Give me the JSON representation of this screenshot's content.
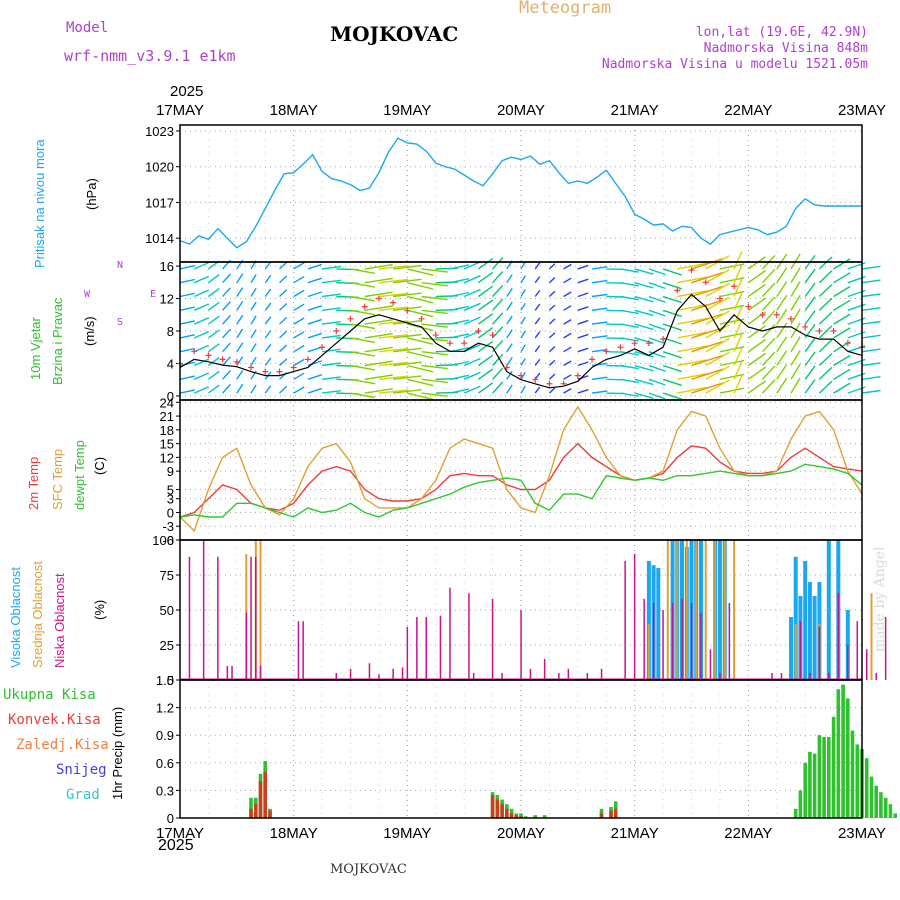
{
  "header": {
    "model_label": "Model",
    "model_name": "wrf-nmm_v3.9.1 e1km",
    "station": "MOJKOVAC",
    "product": "Meteogram",
    "lonlat": "lon,lat (19.6E, 42.9N)",
    "altitude": "Nadmorska Visina 848m",
    "model_altitude": "Nadmorska Visina u modelu 1521.05m",
    "credit": "made by Angel",
    "footer_station": "MOJKOVAC"
  },
  "time_axis": {
    "year": "2025",
    "labels": [
      "17MAY",
      "18MAY",
      "19MAY",
      "20MAY",
      "21MAY",
      "22MAY",
      "23MAY"
    ]
  },
  "panels": {
    "pressure": {
      "labels": [
        "Pritisak na nivou mora"
      ],
      "unit": "(hPa)",
      "color_label": "#00a0ff"
    },
    "wind": {
      "labels": [
        "10m Vjetar",
        "Brzina i Pravac"
      ],
      "unit": "(m/s)",
      "compass": [
        "N",
        "E",
        "S",
        "W"
      ]
    },
    "temp": {
      "labels": [
        "2m Temp",
        "SFC Temp",
        "dewpt Temp"
      ],
      "unit": "(C)"
    },
    "cloud": {
      "labels": [
        "Visoka Oblacnost",
        "Srednja Oblacnost",
        "Niska Oblacnost"
      ],
      "unit": "(%)"
    },
    "precip": {
      "labels": [
        "Ukupna Kisa",
        "Konvek.Kisa",
        "Zaledj.Kisa",
        "Snijeg",
        "Grad"
      ],
      "unit": "1hr Precip (mm)"
    }
  },
  "colors": {
    "pressure": "#1ca8f0",
    "temp2m": "#f03c3c",
    "sfc": "#e0a030",
    "dewpt": "#30c830",
    "wind_speed": "#000000",
    "gust": "#f03c3c",
    "cloud_high": "#1ca8f0",
    "cloud_mid": "#e0a030",
    "cloud_low": "#c8148c",
    "precip_total": "#30c030",
    "precip_conv": "#c84020",
    "label_purple": "#b040d0",
    "label_orange": "#e0b070"
  },
  "chart_data": [
    {
      "type": "line",
      "title": "",
      "ylabel": "(hPa)",
      "ylim": [
        1012,
        1023.5
      ],
      "yticks": [
        1014,
        1017,
        1020,
        1023
      ],
      "x": [
        0,
        2,
        4,
        6,
        8,
        10,
        12,
        14,
        16,
        18,
        20,
        22,
        24,
        26,
        28,
        30,
        32,
        34,
        36,
        38,
        40,
        42,
        44,
        46,
        48,
        50,
        52,
        54,
        56,
        58,
        60,
        62,
        64,
        66,
        68,
        70,
        72,
        74,
        76,
        78,
        80,
        82,
        84,
        86,
        88,
        90,
        92,
        94,
        96,
        98,
        100,
        102,
        104,
        106,
        108,
        110,
        112,
        114,
        116,
        118,
        120,
        122,
        124,
        126,
        128,
        130,
        132,
        134,
        136,
        138,
        140,
        142,
        144
      ],
      "series": [
        {
          "name": "Pritisak",
          "values": [
            1013.8,
            1013.5,
            1014.2,
            1013.9,
            1014.8,
            1014.0,
            1013.2,
            1013.7,
            1015.0,
            1016.5,
            1018.0,
            1019.4,
            1019.5,
            1020.2,
            1021.0,
            1019.6,
            1019.0,
            1018.8,
            1018.5,
            1018.0,
            1018.2,
            1019.5,
            1021.2,
            1022.4,
            1022.0,
            1021.9,
            1021.3,
            1020.3,
            1020.0,
            1019.8,
            1019.3,
            1018.8,
            1018.4,
            1019.4,
            1020.5,
            1020.8,
            1020.6,
            1020.9,
            1020.2,
            1020.5,
            1019.5,
            1018.6,
            1018.8,
            1018.6,
            1019.1,
            1019.7,
            1018.6,
            1017.5,
            1016.0,
            1015.6,
            1015.1,
            1015.2,
            1014.6,
            1015.0,
            1014.9,
            1014.0,
            1013.5,
            1014.3,
            1014.5,
            1014.7,
            1014.9,
            1014.7,
            1014.3,
            1014.5,
            1015.0,
            1016.5,
            1017.3,
            1016.8,
            1016.7,
            1016.7,
            1016.7,
            1016.7,
            1016.7
          ]
        }
      ]
    },
    {
      "type": "line",
      "title": "",
      "ylabel": "(m/s)",
      "ylim": [
        -0.5,
        16.5
      ],
      "yticks": [
        0,
        4,
        8,
        12,
        16
      ],
      "x": [
        0,
        3,
        6,
        9,
        12,
        15,
        18,
        21,
        24,
        27,
        30,
        33,
        36,
        39,
        42,
        45,
        48,
        51,
        54,
        57,
        60,
        63,
        66,
        69,
        72,
        75,
        78,
        81,
        84,
        87,
        90,
        93,
        96,
        99,
        102,
        105,
        108,
        111,
        114,
        117,
        120,
        123,
        126,
        129,
        132,
        135,
        138,
        141,
        144
      ],
      "series": [
        {
          "name": "Brzina",
          "values": [
            3.5,
            4.5,
            4.2,
            3.8,
            3.6,
            3.0,
            2.5,
            2.5,
            3.0,
            3.5,
            5.0,
            6.5,
            8.0,
            9.5,
            10.0,
            9.5,
            9.0,
            8.5,
            6.5,
            5.5,
            5.5,
            6.5,
            6.0,
            3.0,
            2.0,
            1.5,
            1.0,
            1.2,
            1.8,
            3.5,
            4.5,
            5.0,
            5.8,
            5.0,
            6.0,
            10.5,
            12.5,
            11.0,
            8.0,
            10.0,
            8.5,
            8.0,
            8.5,
            8.5,
            7.5,
            7.0,
            7.0,
            5.5,
            5.0
          ]
        },
        {
          "name": "Udari",
          "values": [
            4.0,
            5.5,
            5.0,
            4.5,
            4.2,
            3.5,
            3.0,
            3.0,
            3.5,
            4.5,
            6.0,
            8.0,
            9.5,
            11.0,
            12.0,
            11.5,
            10.5,
            9.5,
            7.5,
            6.5,
            6.5,
            8.0,
            7.5,
            3.5,
            2.5,
            2.0,
            1.5,
            1.5,
            2.5,
            4.5,
            5.5,
            6.0,
            6.5,
            6.5,
            7.0,
            13.0,
            15.5,
            14.0,
            12.0,
            13.5,
            11.0,
            10.0,
            10.0,
            9.5,
            8.5,
            8.0,
            8.0,
            6.5,
            6.0
          ]
        }
      ]
    },
    {
      "type": "line",
      "title": "",
      "ylabel": "(C)",
      "ylim": [
        -6,
        24.5
      ],
      "yticks": [
        -6,
        -3,
        0,
        3,
        5,
        9,
        12,
        15,
        18,
        21,
        24
      ],
      "x": [
        0,
        3,
        6,
        9,
        12,
        15,
        18,
        21,
        24,
        27,
        30,
        33,
        36,
        39,
        42,
        45,
        48,
        51,
        54,
        57,
        60,
        63,
        66,
        69,
        72,
        75,
        78,
        81,
        84,
        87,
        90,
        93,
        96,
        99,
        102,
        105,
        108,
        111,
        114,
        117,
        120,
        123,
        126,
        129,
        132,
        135,
        138,
        141,
        144
      ],
      "series": [
        {
          "name": "2m Temp",
          "values": [
            -1,
            0,
            3,
            6,
            5,
            2,
            1,
            0.5,
            2,
            6,
            9,
            10,
            9,
            5,
            3,
            2.5,
            2.5,
            3,
            5,
            8,
            8.5,
            8,
            8,
            6,
            5,
            5,
            7,
            12,
            15,
            12,
            10,
            8,
            7,
            7.5,
            8.5,
            12,
            14.5,
            14,
            11,
            9,
            8.5,
            8.5,
            9,
            12,
            14,
            12,
            10,
            9.5,
            9
          ]
        },
        {
          "name": "SFC Temp",
          "values": [
            -1,
            -4,
            5,
            12,
            14,
            6,
            1,
            -0.5,
            3,
            10,
            14,
            15,
            11,
            3,
            1,
            1,
            1,
            3,
            7,
            14,
            16,
            15,
            14,
            5,
            1,
            0,
            8,
            18,
            23,
            18,
            12,
            8,
            7,
            7.5,
            9,
            18,
            22,
            21,
            14,
            9,
            8,
            8,
            9,
            16,
            21,
            22,
            18,
            9,
            4
          ]
        },
        {
          "name": "dewpt Temp",
          "values": [
            -1,
            -0.5,
            -1,
            -1,
            2,
            2,
            1,
            0,
            -1,
            1,
            0,
            0.5,
            2,
            0,
            -1,
            0.5,
            1,
            2,
            3,
            4,
            5.5,
            6.5,
            7,
            7.5,
            7,
            2,
            0.5,
            4,
            4,
            3,
            8,
            7.5,
            7,
            7.5,
            7,
            8,
            8,
            8.5,
            9,
            8.5,
            8,
            8,
            8.5,
            9,
            10.5,
            10,
            9.5,
            8.5,
            6
          ]
        }
      ]
    },
    {
      "type": "bar",
      "title": "",
      "ylabel": "(%)",
      "ylim": [
        0,
        100
      ],
      "yticks": [
        0,
        25,
        50,
        75,
        100
      ],
      "series": [
        {
          "name": "Visoka Oblacnost",
          "x": [
            99,
            100,
            101,
            104,
            105,
            106,
            107,
            108,
            109,
            110,
            113,
            114,
            115,
            129,
            130,
            131,
            132,
            133,
            134,
            135,
            137,
            139,
            141
          ],
          "values": [
            85,
            82,
            80,
            100,
            100,
            100,
            95,
            100,
            100,
            100,
            100,
            100,
            100,
            45,
            88,
            60,
            85,
            70,
            60,
            70,
            100,
            100,
            50
          ]
        },
        {
          "name": "Srednja Oblacnost",
          "x": [
            14,
            16,
            17,
            99,
            103,
            105,
            107,
            109,
            111,
            113,
            115,
            117,
            130,
            135,
            146
          ],
          "values": [
            90,
            100,
            100,
            40,
            100,
            100,
            100,
            100,
            100,
            100,
            100,
            100,
            40,
            40,
            62
          ]
        },
        {
          "name": "Niska Oblacnost",
          "x": [
            2,
            5,
            8,
            10,
            11,
            14,
            15,
            16,
            17,
            25,
            26,
            33,
            36,
            40,
            42,
            45,
            47,
            48,
            50,
            52,
            55,
            57,
            61,
            62,
            66,
            68,
            72,
            74,
            77,
            80,
            82,
            86,
            89,
            94,
            96,
            98,
            100,
            102,
            104,
            106,
            108,
            110,
            112,
            114,
            116,
            125,
            127,
            131,
            133,
            135,
            137,
            139,
            141,
            143,
            145,
            147,
            149,
            153,
            157,
            163
          ],
          "values": [
            88,
            100,
            88,
            10,
            10,
            48,
            88,
            88,
            10,
            42,
            42,
            5,
            8,
            12,
            4,
            8,
            9,
            38,
            45,
            45,
            46,
            66,
            62,
            5,
            58,
            5,
            50,
            8,
            15,
            5,
            8,
            5,
            8,
            85,
            90,
            58,
            55,
            50,
            55,
            58,
            55,
            48,
            22,
            5,
            55,
            5,
            5,
            42,
            5,
            38,
            5,
            62,
            25,
            42,
            22,
            5,
            45,
            15,
            10,
            22
          ]
        }
      ]
    },
    {
      "type": "bar",
      "title": "",
      "ylabel": "1hr Precip (mm)",
      "ylim": [
        0,
        1.5
      ],
      "yticks": [
        0,
        0.3,
        0.6,
        0.9,
        1.2,
        1.5
      ],
      "series": [
        {
          "name": "Ukupna Kisa",
          "x": [
            15,
            16,
            17,
            18,
            19,
            66,
            67,
            68,
            69,
            70,
            71,
            72,
            73,
            75,
            77,
            89,
            91,
            92,
            130,
            131,
            132,
            133,
            134,
            135,
            136,
            137,
            138,
            139,
            140,
            141,
            142,
            143,
            144,
            145,
            146,
            147,
            148,
            149,
            150,
            151
          ],
          "values": [
            0.22,
            0.22,
            0.48,
            0.62,
            0.1,
            0.28,
            0.25,
            0.2,
            0.15,
            0.1,
            0.05,
            0.05,
            0.02,
            0.03,
            0.03,
            0.1,
            0.12,
            0.18,
            0.1,
            0.3,
            0.6,
            0.72,
            0.7,
            0.9,
            0.88,
            0.88,
            1.1,
            1.4,
            1.45,
            1.3,
            0.95,
            0.8,
            0.75,
            0.65,
            0.45,
            0.35,
            0.28,
            0.22,
            0.15,
            0.05
          ]
        },
        {
          "name": "Konvek.Kisa",
          "x": [
            15,
            16,
            17,
            18,
            19,
            66,
            67,
            68,
            69,
            70,
            71,
            72,
            89,
            91,
            92
          ],
          "values": [
            0.1,
            0.15,
            0.4,
            0.5,
            0.08,
            0.25,
            0.2,
            0.15,
            0.1,
            0.05,
            0.03,
            0.02,
            0.05,
            0.08,
            0.1
          ]
        }
      ]
    }
  ]
}
